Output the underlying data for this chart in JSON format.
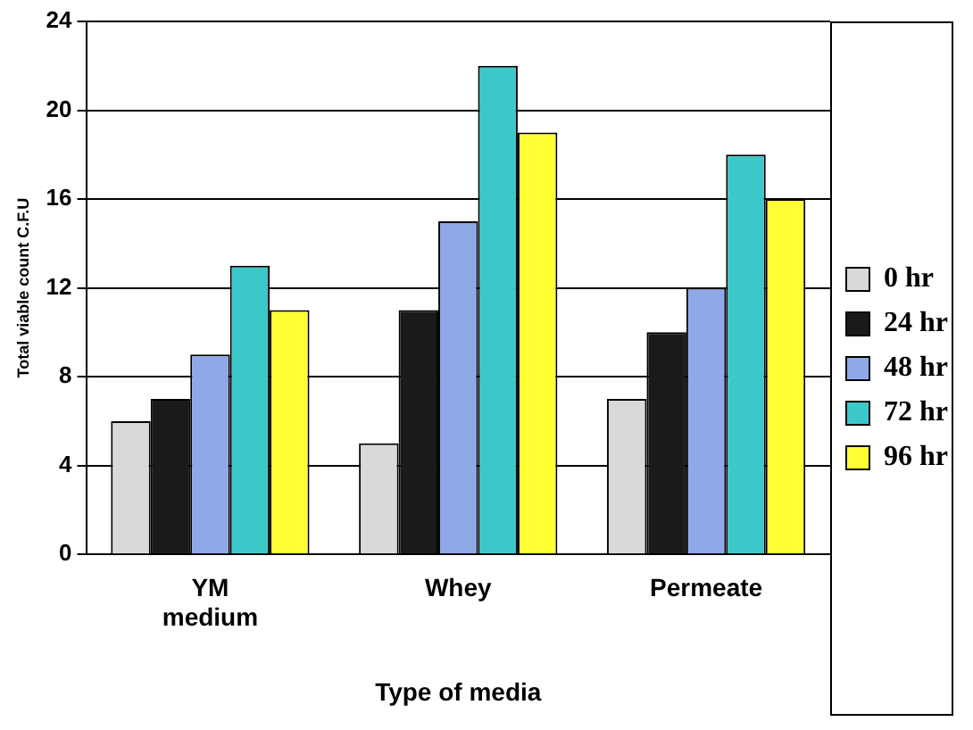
{
  "chart_data": {
    "type": "bar",
    "categories": [
      "YM medium",
      "Whey",
      "Permeate"
    ],
    "series": [
      {
        "name": "0 hr",
        "color": "#d9d9d9",
        "values": [
          6,
          5,
          7
        ]
      },
      {
        "name": "24 hr",
        "color": "#1a1a1a",
        "values": [
          7,
          11,
          10
        ]
      },
      {
        "name": "48 hr",
        "color": "#8fa8e8",
        "values": [
          9,
          15,
          12
        ]
      },
      {
        "name": "72 hr",
        "color": "#3cc8c8",
        "values": [
          13,
          22,
          18
        ]
      },
      {
        "name": "96 hr",
        "color": "#ffff33",
        "values": [
          11,
          19,
          16
        ]
      }
    ],
    "xlabel": "Type of media",
    "ylabel": "Total viable count C.F.U",
    "ylim": [
      0,
      24
    ],
    "yticks": [
      0,
      4,
      8,
      12,
      16,
      20,
      24
    ],
    "grid": "y",
    "legend": "right"
  }
}
